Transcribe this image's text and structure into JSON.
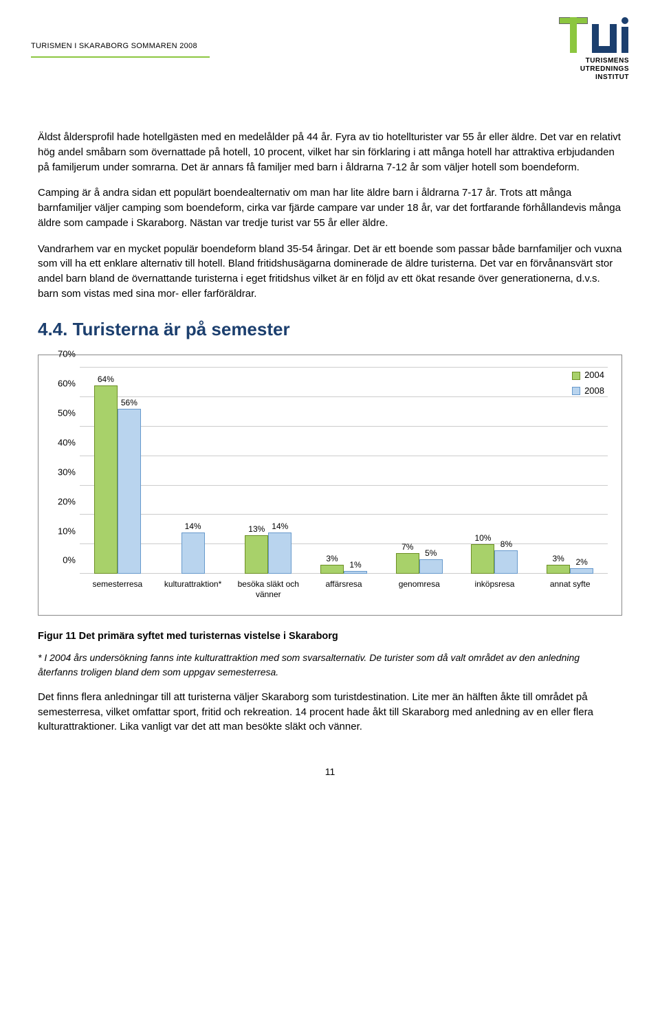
{
  "header": {
    "doc_title": "TURISMEN I SKARABORG SOMMAREN 2008",
    "logo_line1": "TURISMENS",
    "logo_line2": "UTREDNINGS",
    "logo_line3": "INSTITUT",
    "logo_green": "#8cc63f",
    "logo_blue": "#1c3f6e"
  },
  "body": {
    "p1": "Äldst åldersprofil hade hotellgästen med en medelålder på 44 år. Fyra av tio hotellturister var 55 år eller äldre. Det var en relativt hög andel småbarn som övernattade på hotell, 10 procent, vilket har sin förklaring i att många hotell har attraktiva erbjudanden på familjerum under somrarna. Det är annars få familjer med barn i åldrarna 7-12 år som väljer hotell som boendeform.",
    "p2": "Camping är å andra sidan ett populärt boendealternativ om man har lite äldre barn i åldrarna 7-17 år. Trots att många barnfamiljer väljer camping som boendeform, cirka var fjärde campare var under 18 år, var det fortfarande förhållandevis många äldre som campade i Skaraborg. Nästan var tredje turist var 55 år eller äldre.",
    "p3": "Vandrarhem var en mycket populär boendeform bland 35-54 åringar. Det är ett boende som passar både barnfamiljer och vuxna som vill ha ett enklare alternativ till hotell. Bland fritidshusägarna dominerade de äldre turisterna. Det var en förvånansvärt stor andel barn bland de övernattande turisterna i eget fritidshus vilket är en följd av ett ökat resande över generationerna, d.v.s. barn som vistas med sina mor- eller farföräldrar.",
    "section_heading": "4.4. Turisterna är på semester"
  },
  "chart": {
    "type": "bar",
    "ylim": [
      0,
      70
    ],
    "ytick_step": 10,
    "ylabels": [
      "0%",
      "10%",
      "20%",
      "30%",
      "40%",
      "50%",
      "60%",
      "70%"
    ],
    "grid_color": "#cccccc",
    "border_color": "#888888",
    "bg": "#ffffff",
    "label_fontsize": 12,
    "series": [
      {
        "name": "2004",
        "color": "#a8d16a",
        "border": "#6b8e23"
      },
      {
        "name": "2008",
        "color": "#b9d4ee",
        "border": "#6699cc"
      }
    ],
    "categories": [
      {
        "label": "semesterresa",
        "v2004": 64,
        "v2008": 56,
        "show2004": true
      },
      {
        "label": "kulturattraktion*",
        "v2004": null,
        "v2008": 14,
        "show2004": false
      },
      {
        "label": "besöka släkt och vänner",
        "v2004": 13,
        "v2008": 14,
        "show2004": true
      },
      {
        "label": "affärsresa",
        "v2004": 3,
        "v2008": 1,
        "show2004": true
      },
      {
        "label": "genomresa",
        "v2004": 7,
        "v2008": 5,
        "show2004": true
      },
      {
        "label": "inköpsresa",
        "v2004": 10,
        "v2008": 8,
        "show2004": true
      },
      {
        "label": "annat syfte",
        "v2004": 3,
        "v2008": 2,
        "show2004": true
      }
    ]
  },
  "caption": "Figur 11 Det primära syftet med turisternas vistelse i Skaraborg",
  "footnote": "* I 2004 års undersökning fanns inte kulturattraktion med som svarsalternativ. De turister som då valt området av den anledning återfanns troligen bland dem som uppgav semesterresa.",
  "closing": "Det finns flera anledningar till att turisterna väljer Skaraborg som turistdestination. Lite mer än hälften åkte till området på semesterresa, vilket omfattar sport, fritid och rekreation. 14 procent hade åkt till Skaraborg med anledning av en eller flera kulturattraktioner. Lika vanligt var det att man besökte släkt och vänner.",
  "page_number": "11"
}
